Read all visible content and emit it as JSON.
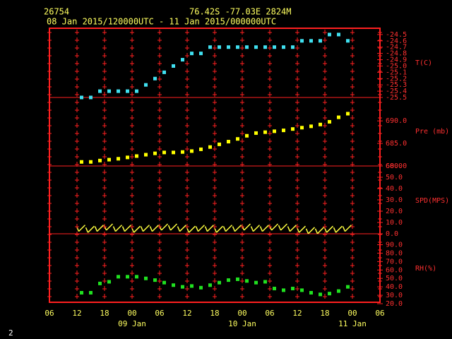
{
  "header": {
    "station": "26754",
    "location": "76.42S  -77.03E  2824M",
    "period": "08 Jan 2015/120000UTC - 11 Jan 2015/000000UTC"
  },
  "footer": "2",
  "chart_data": [
    {
      "type": "scatter",
      "ylabel": "T(C)",
      "xlim": [
        6,
        78
      ],
      "ylim": [
        -25.5,
        -24.4
      ],
      "yticks": [
        -24.5,
        -24.6,
        -24.7,
        -24.8,
        -24.9,
        {
          "value": -25.0,
          "label": "-25.0"
        },
        -25.1,
        -25.2,
        -25.3,
        -25.4,
        -25.5
      ],
      "x": [
        13,
        15,
        17,
        19,
        21,
        23,
        25,
        27,
        29,
        31,
        33,
        35,
        37,
        39,
        41,
        43,
        45,
        47,
        49,
        51,
        53,
        55,
        57,
        59,
        61,
        63,
        65,
        67,
        69,
        71
      ],
      "series": [
        {
          "color": "#40e0f0",
          "values": [
            -25.5,
            -25.5,
            -25.4,
            -25.4,
            -25.4,
            -25.4,
            -25.4,
            -25.3,
            -25.2,
            -25.1,
            -25.0,
            -24.9,
            -24.8,
            -24.8,
            -24.7,
            -24.7,
            -24.7,
            -24.7,
            -24.7,
            -24.7,
            -24.7,
            -24.7,
            -24.7,
            -24.7,
            -24.6,
            -24.6,
            -24.6,
            -24.5,
            -24.5,
            -24.6
          ]
        }
      ]
    },
    {
      "type": "scatter",
      "ylabel": "Pre (mb)",
      "xlim": [
        6,
        78
      ],
      "ylim": [
        680,
        695.2
      ],
      "yticks": [
        {
          "value": 690,
          "label": "690.0"
        },
        {
          "value": 685,
          "label": "685.0"
        },
        {
          "value": 680,
          "label": "680.0"
        }
      ],
      "x": [
        13,
        15,
        17,
        19,
        21,
        23,
        25,
        27,
        29,
        31,
        33,
        35,
        37,
        39,
        41,
        43,
        45,
        47,
        49,
        51,
        53,
        55,
        57,
        59,
        61,
        63,
        65,
        67,
        69,
        71
      ],
      "series": [
        {
          "color": "#ffff00",
          "values": [
            680.9,
            680.9,
            681.2,
            681.4,
            681.6,
            681.9,
            682.2,
            682.5,
            682.8,
            683.0,
            683.0,
            683.1,
            683.3,
            683.7,
            684.2,
            684.8,
            685.4,
            686.0,
            686.7,
            687.3,
            687.5,
            687.7,
            687.9,
            688.2,
            688.5,
            688.8,
            689.2,
            689.8,
            690.8,
            691.6
          ]
        }
      ]
    },
    {
      "type": "barb",
      "ylabel": "SPD(MPS)",
      "xlim": [
        6,
        78
      ],
      "ylim": [
        0,
        60
      ],
      "yticks": [
        {
          "value": 60,
          "label": "60.0"
        },
        {
          "value": 50,
          "label": "50.0"
        },
        {
          "value": 40,
          "label": "40.0"
        },
        {
          "value": 30,
          "label": "30.0"
        },
        {
          "value": 20,
          "label": "20.0"
        },
        {
          "value": 10,
          "label": "10.0"
        },
        {
          "value": 0,
          "label": "0.0"
        }
      ],
      "x": [
        13,
        15,
        17,
        19,
        21,
        23,
        25,
        27,
        29,
        31,
        33,
        35,
        37,
        39,
        41,
        43,
        45,
        47,
        49,
        51,
        53,
        55,
        57,
        59,
        61,
        63,
        65,
        67,
        69,
        71
      ],
      "series": [
        {
          "color": "#ffff40",
          "values": [
            4,
            3,
            4,
            5,
            4,
            4,
            3,
            4,
            4,
            5,
            5,
            4,
            3,
            4,
            4,
            3,
            4,
            4,
            5,
            4,
            4,
            5,
            5,
            4,
            3,
            2,
            2,
            3,
            3,
            4
          ]
        }
      ]
    },
    {
      "type": "scatter",
      "ylabel": "RH(%)",
      "xlim": [
        6,
        78
      ],
      "ylim": [
        20,
        103
      ],
      "yticks": [
        {
          "value": 90,
          "label": "90.0"
        },
        {
          "value": 80,
          "label": "80.0"
        },
        {
          "value": 70,
          "label": "70.0"
        },
        {
          "value": 60,
          "label": "60.0"
        },
        {
          "value": 50,
          "label": "50.0"
        },
        {
          "value": 40,
          "label": "40.0"
        },
        {
          "value": 30,
          "label": "30.0"
        },
        {
          "value": 20,
          "label": "20.0"
        }
      ],
      "x": [
        13,
        15,
        17,
        19,
        21,
        23,
        25,
        27,
        29,
        31,
        33,
        35,
        37,
        39,
        41,
        43,
        45,
        47,
        49,
        51,
        53,
        55,
        57,
        59,
        61,
        63,
        65,
        67,
        69,
        71
      ],
      "series": [
        {
          "color": "#20e020",
          "values": [
            33,
            33,
            44,
            46,
            52,
            52,
            52,
            50,
            48,
            45,
            42,
            40,
            41,
            39,
            42,
            45,
            48,
            49,
            47,
            45,
            46,
            38,
            36,
            38,
            36,
            33,
            31,
            32,
            35,
            40
          ]
        }
      ],
      "xticks": [
        {
          "value": 6,
          "label": "06"
        },
        {
          "value": 12,
          "label": "12"
        },
        {
          "value": 18,
          "label": "18"
        },
        {
          "value": 24,
          "label": "00"
        },
        {
          "value": 30,
          "label": "06"
        },
        {
          "value": 36,
          "label": "12"
        },
        {
          "value": 42,
          "label": "18"
        },
        {
          "value": 48,
          "label": "00"
        },
        {
          "value": 54,
          "label": "06"
        },
        {
          "value": 60,
          "label": "12"
        },
        {
          "value": 66,
          "label": "18"
        },
        {
          "value": 72,
          "label": "00"
        },
        {
          "value": 78,
          "label": "06"
        }
      ],
      "date_labels": [
        {
          "value": 24,
          "label": "09 Jan"
        },
        {
          "value": 48,
          "label": "10 Jan"
        },
        {
          "value": 72,
          "label": "11 Jan"
        }
      ]
    }
  ]
}
